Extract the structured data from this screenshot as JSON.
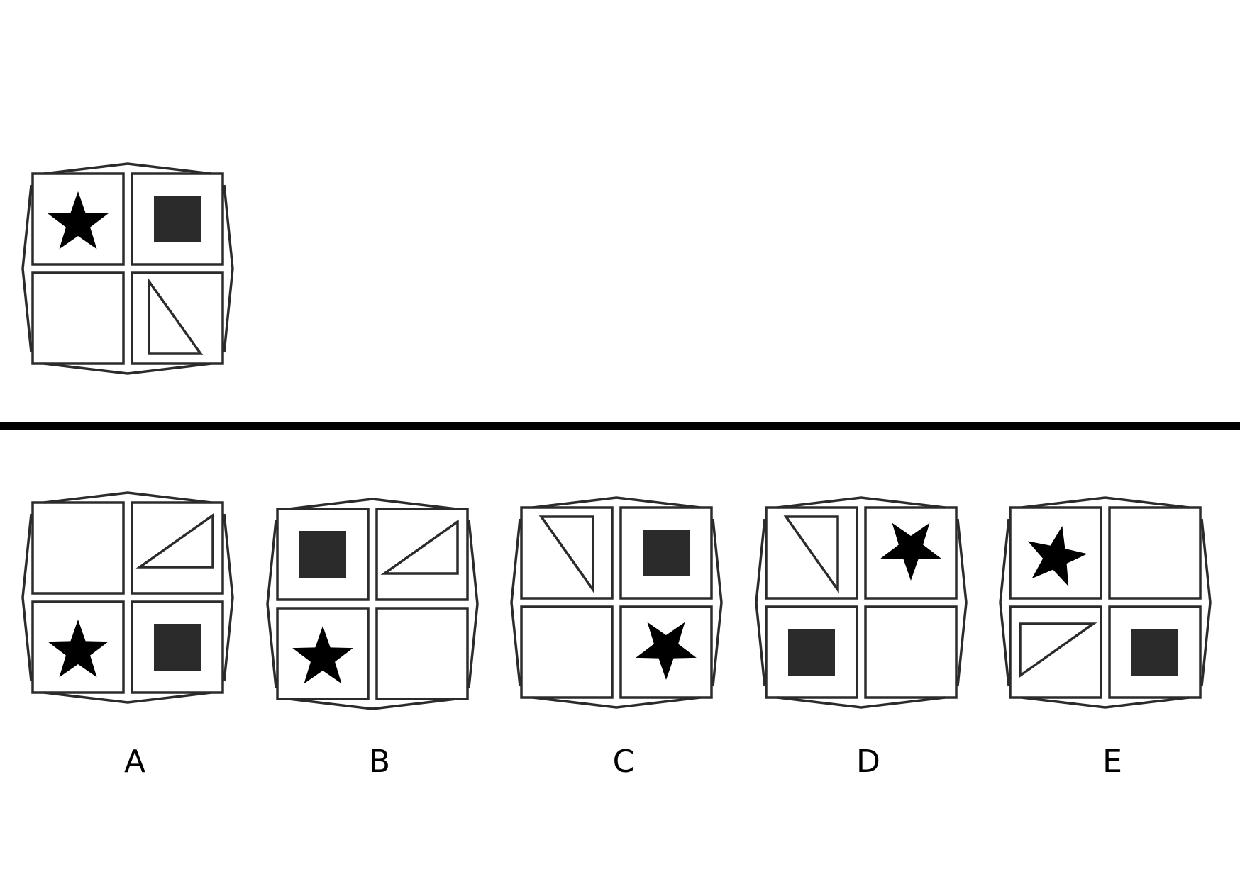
{
  "colors": {
    "line": "#2b2b2b",
    "fill": "#2b2b2b",
    "star": "#000000",
    "divider": "#000000",
    "background": "#ffffff"
  },
  "question": {
    "cells": [
      "star",
      "square",
      "empty",
      "triangle-tl"
    ]
  },
  "options": [
    {
      "label": "A",
      "cells": [
        "empty",
        "triangle-br",
        "star",
        "square"
      ]
    },
    {
      "label": "B",
      "cells": [
        "square",
        "triangle-br",
        "star",
        "empty"
      ]
    },
    {
      "label": "C",
      "cells": [
        "triangle-tr",
        "square",
        "empty",
        "star-inverted"
      ]
    },
    {
      "label": "D",
      "cells": [
        "triangle-tr",
        "star-inverted",
        "square",
        "empty"
      ]
    },
    {
      "label": "E",
      "cells": [
        "star-rotated",
        "empty",
        "triangle-bl",
        "square"
      ]
    }
  ]
}
